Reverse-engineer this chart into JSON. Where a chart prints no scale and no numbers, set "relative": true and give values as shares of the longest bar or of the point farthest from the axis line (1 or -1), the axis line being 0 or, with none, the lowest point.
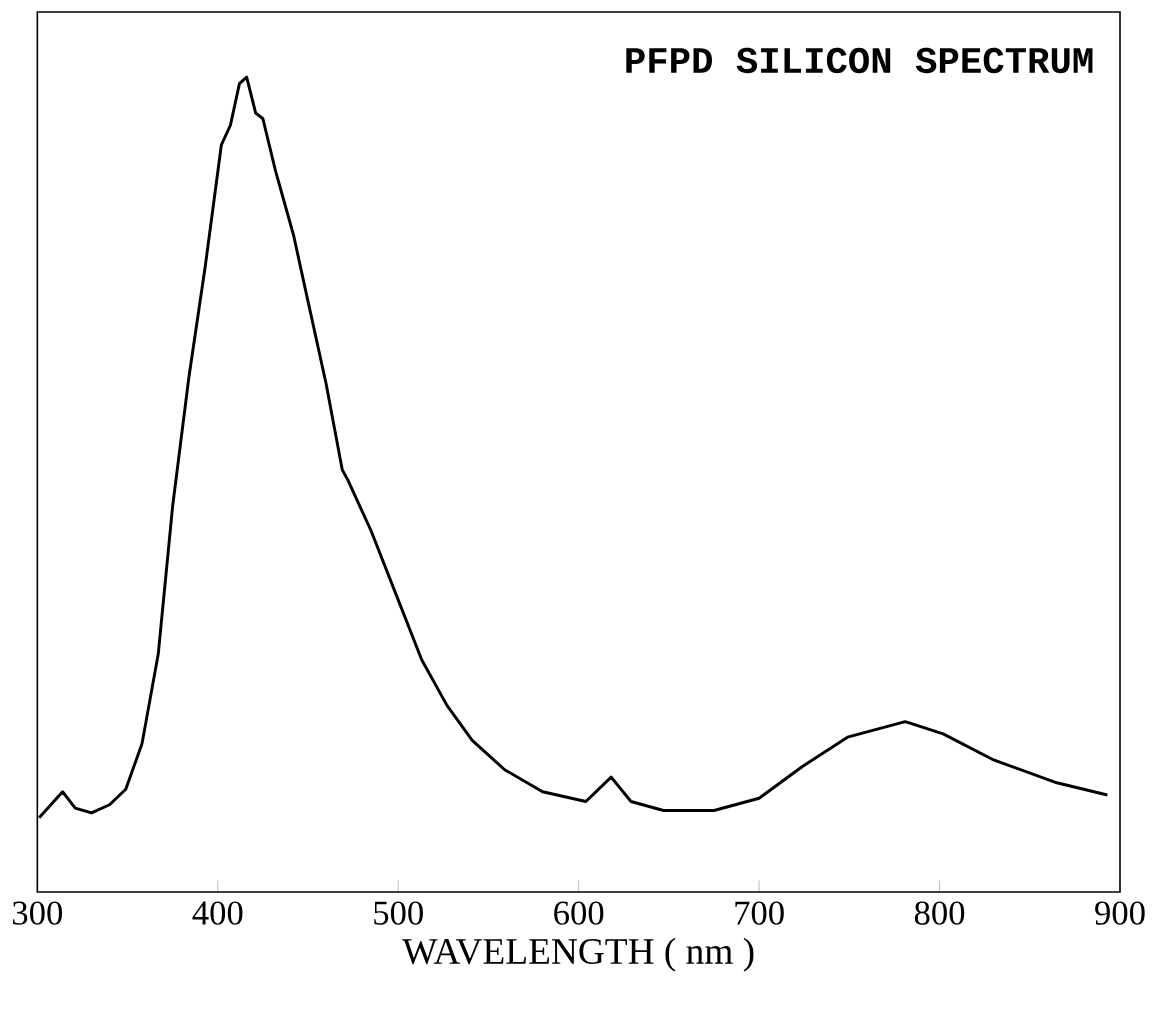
{
  "chart_data": {
    "type": "line",
    "title": "PFPD   SILICON   SPECTRUM",
    "xlabel": "WAVELENGTH ( nm )",
    "relative": true,
    "color": "#000000",
    "xlim": [
      300,
      900
    ],
    "xticks": [
      300,
      400,
      500,
      600,
      700,
      800,
      900
    ],
    "x": [
      301,
      314,
      321,
      330,
      340,
      349,
      358,
      367,
      375,
      384,
      393,
      402,
      407,
      412,
      416,
      421,
      425,
      432,
      442,
      449,
      460,
      469,
      472,
      485,
      499,
      513,
      527,
      541,
      559,
      580,
      604,
      618,
      629,
      647,
      675,
      700,
      724,
      749,
      781,
      802,
      830,
      865,
      893
    ],
    "values": [
      0.091,
      0.123,
      0.103,
      0.097,
      0.107,
      0.126,
      0.182,
      0.292,
      0.474,
      0.632,
      0.767,
      0.917,
      0.941,
      0.992,
      1.0,
      0.956,
      0.949,
      0.885,
      0.806,
      0.735,
      0.624,
      0.518,
      0.506,
      0.443,
      0.364,
      0.285,
      0.229,
      0.186,
      0.15,
      0.123,
      0.111,
      0.141,
      0.111,
      0.1,
      0.1,
      0.115,
      0.154,
      0.19,
      0.209,
      0.194,
      0.162,
      0.134,
      0.119
    ]
  }
}
